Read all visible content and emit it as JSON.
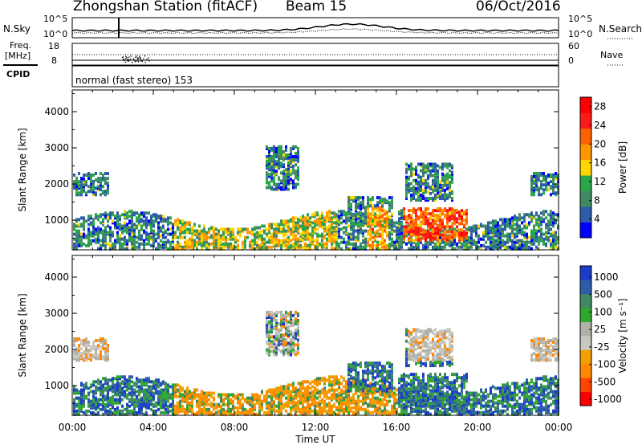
{
  "header": {
    "station": "Zhongshan Station (fitACF)",
    "beam": "Beam 15",
    "date": "06/Oct/2016"
  },
  "top_panel": {
    "left_label": "N.Sky",
    "right_label": "N.Search",
    "left_ticks": [
      "10^5",
      "10^0"
    ],
    "right_ticks": [
      "10^5",
      "10^0"
    ]
  },
  "freq_panel": {
    "left_label_1": "Freq.",
    "left_label_2": "[MHz]",
    "right_label": "Nave",
    "left_ticks": [
      "18",
      "8"
    ],
    "right_ticks": [
      "60",
      "0"
    ]
  },
  "cpid_panel": {
    "label": "CPID",
    "text": "normal (fast stereo) 153"
  },
  "colors": {
    "power": [
      "#0000ff",
      "#2c5caa",
      "#3f8a62",
      "#2aa64a",
      "#ffd400",
      "#ff9600",
      "#ff6000",
      "#ff1a1a",
      "#ff0000"
    ],
    "velocity": [
      "#ff0000",
      "#ff4400",
      "#ff8800",
      "#f0a000",
      "#c8c8c0",
      "#b0b0a8",
      "#30a830",
      "#3f8a62",
      "#2c5caa",
      "#1a3cc8"
    ]
  },
  "chart_data": [
    {
      "type": "heatmap",
      "name": "power",
      "ylabel": "Slant Range [km]",
      "ylim": [
        180,
        4600
      ],
      "yticks": [
        1000,
        2000,
        3000,
        4000
      ],
      "xlim": [
        0,
        24
      ],
      "colorbar_label": "Power [dB]",
      "colorbar_ticks": [
        "4",
        "8",
        "12",
        "16",
        "20",
        "24",
        "28"
      ],
      "colorbar_range": [
        0,
        30
      ]
    },
    {
      "type": "heatmap",
      "name": "velocity",
      "ylabel": "Slant Range [km]",
      "ylim": [
        180,
        4600
      ],
      "yticks": [
        1000,
        2000,
        3000,
        4000
      ],
      "xlim": [
        0,
        24
      ],
      "xlabel": "Time UT",
      "xtick_labels": [
        "00:00",
        "04:00",
        "08:00",
        "12:00",
        "16:00",
        "20:00",
        "00:00"
      ],
      "colorbar_label": "Velocity [m s⁻¹]",
      "colorbar_ticks": [
        "1000",
        "500",
        "100",
        "25",
        "-25",
        "-100",
        "-500",
        "-1000"
      ]
    }
  ]
}
